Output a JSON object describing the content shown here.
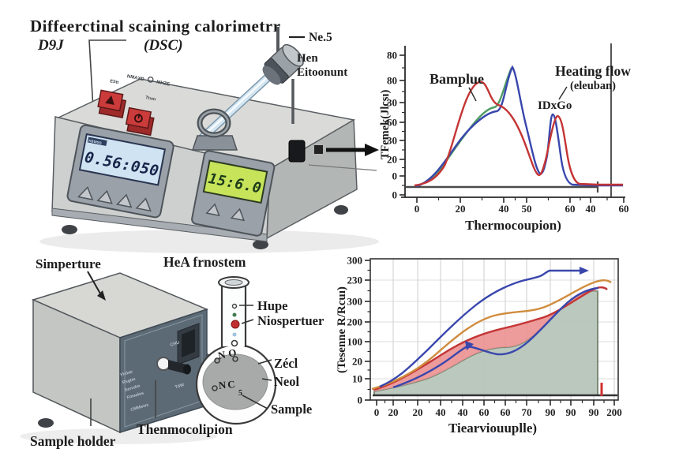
{
  "title": {
    "line1": "Diffeerctinal scaining calorimetrr",
    "line2_left": "D9J",
    "line2_right": "(DSC)"
  },
  "instrument": {
    "display_left": "0.56:050",
    "display_left_tag": "KBWSS",
    "display_right": "15:6.0",
    "micro_label_1": "NMAXD",
    "micro_label_2": "MHZE",
    "micro_label_3": "EStt",
    "micro_label_4": "Ttxm",
    "probe_label_top": "Ne.5",
    "probe_label_line1": "Hen",
    "probe_label_line2": "Eitoonunt"
  },
  "chart1": {
    "ylabel": "TFemek(Jlcsı)",
    "xlabel": "Thermocoupion)",
    "y_ticks": [
      "80",
      "80",
      "30",
      "60",
      "30",
      "20",
      "0",
      "0"
    ],
    "x_ticks": [
      "0",
      "20",
      "40",
      "50",
      "60",
      "40",
      "60"
    ],
    "annotation_sample": "Bamplue",
    "annotation_heating_1": "Heating flow",
    "annotation_heating_2": "(eleuban)",
    "annotation_peak": "IDxGo"
  },
  "holder": {
    "label_top": "Simperture",
    "label_heat_system": "HeA frnostem",
    "label_bottom": "Sample holder",
    "label_thermocouple": "Thenmocolipion",
    "panel_lines": [
      "Yhdae",
      "Rsgtm",
      "Servdm",
      "Fmwdas",
      "CMMews"
    ],
    "panel_top_label": "CHU",
    "panel_mid_label": "TdW"
  },
  "flask": {
    "label_hupe": "Hupe",
    "label_mospertuer": "Niospertuer",
    "label_zecl": "Zécl",
    "label_neol": "Neol",
    "label_sample": "Sample",
    "text_no": "NO",
    "text_nc": "NC",
    "text_small": "5"
  },
  "chart2": {
    "ylabel": "(Tesenne R/Rcuı)",
    "xlabel": "Tiearviouuplle)",
    "y_ticks": [
      "300",
      "230",
      "300",
      "200",
      "100",
      "20",
      "10",
      "0"
    ],
    "x_ticks": [
      "0",
      "20",
      "20",
      "40",
      "40",
      "60",
      "60",
      "70",
      "90",
      "90",
      "90",
      "200"
    ]
  },
  "colors": {
    "red": "#c43535",
    "green": "#4f9e63",
    "blue": "#3947ad",
    "orange": "#d08c3e",
    "pink": "#eb9090",
    "sage_fill": "#b7c6ba",
    "sage_edge": "#75846f",
    "lcd_blue": "#cfe3f2",
    "lcd_green": "#c6e35a",
    "button_red": "#cc3b3b",
    "axis": "#2a2a2a"
  },
  "chart_data": [
    {
      "type": "line",
      "title": "",
      "xlabel": "Thermocoupion)",
      "ylabel": "TFemek(Jlcsı)",
      "x_tick_labels": [
        "0",
        "20",
        "40",
        "50",
        "60",
        "40",
        "60"
      ],
      "y_tick_labels": [
        "80",
        "80",
        "30",
        "60",
        "30",
        "20",
        "0",
        "0"
      ],
      "xlim_relative": [
        0,
        100
      ],
      "ylim_relative": [
        0,
        80
      ],
      "grid": false,
      "legend_position": "annotations",
      "series": [
        {
          "name": "Bamplue (red)",
          "color": "#c43535",
          "points": [
            [
              5,
              1
            ],
            [
              19,
              14
            ],
            [
              34,
              64
            ],
            [
              42,
              50
            ],
            [
              51,
              37
            ],
            [
              62,
              5
            ],
            [
              70,
              43
            ],
            [
              76,
              2
            ],
            [
              100,
              1
            ]
          ]
        },
        {
          "name": "green",
          "color": "#4f9e63",
          "points": [
            [
              6,
              0
            ],
            [
              28,
              34
            ],
            [
              41,
              49
            ],
            [
              49,
              73
            ]
          ]
        },
        {
          "name": "IDxGo (blue)",
          "color": "#3947ad",
          "points": [
            [
              6,
              0
            ],
            [
              29,
              33
            ],
            [
              42,
              46
            ],
            [
              49,
              73
            ],
            [
              56,
              34
            ],
            [
              61,
              10
            ],
            [
              68,
              45
            ],
            [
              74,
              3
            ],
            [
              100,
              0
            ]
          ]
        }
      ],
      "baseline": {
        "y": 0,
        "end_tick_x": 88
      }
    },
    {
      "type": "area+line",
      "title": "",
      "xlabel": "Tiearviouuplle)",
      "ylabel": "(Tesenne R/Rcuı)",
      "x_tick_labels": [
        "0",
        "20",
        "20",
        "40",
        "40",
        "60",
        "60",
        "70",
        "90",
        "90",
        "90",
        "200"
      ],
      "y_tick_labels": [
        "300",
        "230",
        "300",
        "200",
        "100",
        "20",
        "10",
        "0"
      ],
      "xlim_relative": [
        0,
        200
      ],
      "ylim_relative": [
        0,
        300
      ],
      "grid": true,
      "series": [
        {
          "name": "blue-upper",
          "color": "#3947ad",
          "arrow_end": true,
          "points": [
            [
              3,
              28
            ],
            [
              42,
              106
            ],
            [
              82,
              199
            ],
            [
              122,
              253
            ],
            [
              137,
              263
            ],
            [
              145,
              275
            ],
            [
              174,
              275
            ]
          ]
        },
        {
          "name": "blue-lower",
          "color": "#3947ad",
          "arrow_mid_at": [
            76,
            114
          ],
          "points": [
            [
              14,
              27
            ],
            [
              55,
              75
            ],
            [
              76,
              114
            ],
            [
              102,
              97
            ],
            [
              127,
              124
            ],
            [
              159,
              203
            ],
            [
              187,
              238
            ]
          ]
        },
        {
          "name": "orange",
          "color": "#d08c3e",
          "points": [
            [
              0,
              23
            ],
            [
              50,
              99
            ],
            [
              102,
              183
            ],
            [
              141,
              199
            ],
            [
              185,
              253
            ],
            [
              197,
              250
            ]
          ]
        },
        {
          "name": "red (top of pink band)",
          "color": "#c43535",
          "points": [
            [
              0,
              22
            ],
            [
              58,
              104
            ],
            [
              106,
              154
            ],
            [
              139,
              176
            ],
            [
              186,
              238
            ],
            [
              194,
              233
            ]
          ]
        },
        {
          "name": "green shaded area",
          "color": "#75846f",
          "fill": "#b7c6ba",
          "drops_to_baseline_at": 186,
          "points": [
            [
              0,
              20
            ],
            [
              45,
              49
            ],
            [
              82,
              99
            ],
            [
              109,
              112
            ],
            [
              140,
              157
            ],
            [
              173,
              228
            ],
            [
              186,
              232
            ]
          ]
        }
      ],
      "shaded_band": {
        "color": "#eb9090",
        "between": [
          "red (top of pink band)",
          "green shaded area"
        ]
      },
      "baseline": {
        "y": 10
      },
      "red_marker_x": 189
    }
  ]
}
